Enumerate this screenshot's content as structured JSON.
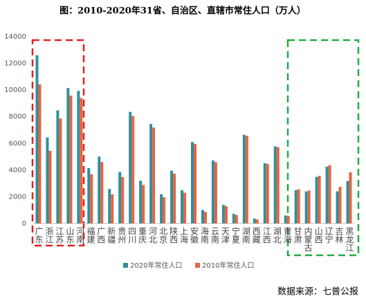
{
  "chart_data": {
    "type": "bar",
    "title": "图：2010-2020年31省、自治区、直辖市常住人口（万人）",
    "source": "数据来源：七普公报",
    "categories": [
      "广东",
      "浙江",
      "江苏",
      "山东",
      "河南",
      "福建",
      "广西",
      "新疆",
      "贵州",
      "四川",
      "重庆",
      "河北",
      "北京",
      "陕西",
      "上海",
      "安徽",
      "海南",
      "云南",
      "天津",
      "宁夏",
      "湖南",
      "西藏",
      "江西",
      "湖北",
      "青海",
      "甘肃",
      "内蒙古",
      "山西",
      "辽宁",
      "吉林",
      "黑龙江"
    ],
    "series": [
      {
        "name": "2020年常住人口",
        "color": "#2f8f9d",
        "values": [
          12601,
          6457,
          8475,
          10153,
          9937,
          4154,
          5013,
          2585,
          3856,
          8367,
          3205,
          7461,
          2189,
          3953,
          2487,
          6103,
          1008,
          4721,
          1387,
          720,
          6644,
          365,
          4519,
          5775,
          592,
          2502,
          2405,
          3492,
          4259,
          2407,
          3185
        ]
      },
      {
        "name": "2010年常住人口",
        "color": "#e8643f",
        "values": [
          10430,
          5443,
          7866,
          9579,
          9402,
          3689,
          4603,
          2181,
          3475,
          8042,
          2885,
          7185,
          1961,
          3733,
          2302,
          5950,
          867,
          4597,
          1294,
          630,
          6568,
          300,
          4457,
          5724,
          563,
          2558,
          2471,
          3571,
          4375,
          2746,
          3831
        ]
      }
    ],
    "ylim": [
      0,
      14000
    ],
    "yticks": [
      0,
      2000,
      4000,
      6000,
      8000,
      10000,
      12000,
      14000
    ],
    "grid": false
  }
}
